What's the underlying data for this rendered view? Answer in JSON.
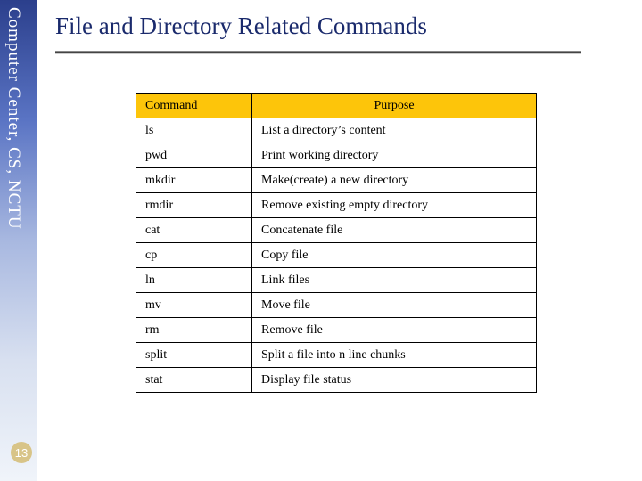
{
  "sidebar": {
    "label": "Computer Center, CS, NCTU",
    "gradient_top": "#2b3f8c",
    "gradient_bottom": "#f0f4fa"
  },
  "page_number": "13",
  "title": "File and Directory Related Commands",
  "table": {
    "header_bg": "#fdc50a",
    "border_color": "#000000",
    "columns": [
      "Command",
      "Purpose"
    ],
    "rows": [
      [
        "ls",
        "List a directory’s content"
      ],
      [
        "pwd",
        "Print working directory"
      ],
      [
        "mkdir",
        "Make(create) a new directory"
      ],
      [
        "rmdir",
        "Remove existing empty directory"
      ],
      [
        "cat",
        "Concatenate file"
      ],
      [
        "cp",
        "Copy file"
      ],
      [
        "ln",
        "Link files"
      ],
      [
        "mv",
        "Move file"
      ],
      [
        "rm",
        "Remove file"
      ],
      [
        "split",
        "Split a file into n line chunks"
      ],
      [
        "stat",
        "Display file status"
      ]
    ]
  },
  "styles": {
    "title_color": "#1a2a6c",
    "title_fontsize": 27,
    "body_font": "Georgia, serif",
    "cell_fontsize": 14,
    "slide_width": 720,
    "slide_height": 540
  }
}
